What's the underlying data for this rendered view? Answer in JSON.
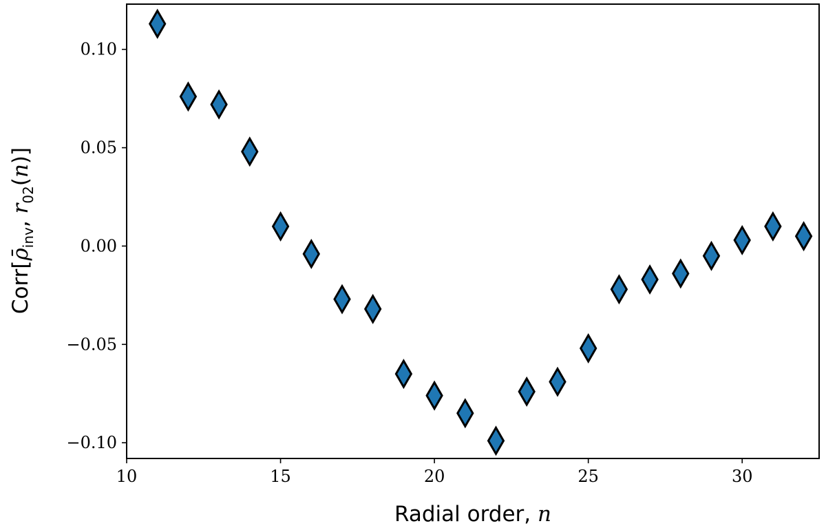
{
  "chart_data": {
    "type": "scatter",
    "xlabel": "Radial order, n",
    "xlabel_text": "Radial order, ",
    "xlabel_math": "n",
    "ylabel": "Corr[ρ̄inv, r02(n)]",
    "xlim": [
      10,
      32.5
    ],
    "ylim": [
      -0.108,
      0.123
    ],
    "xticks": [
      10,
      15,
      20,
      25,
      30
    ],
    "xtick_labels": [
      "10",
      "15",
      "20",
      "25",
      "30"
    ],
    "yticks": [
      0.1,
      0.05,
      0.0,
      -0.05,
      -0.1
    ],
    "ytick_labels": [
      "0.10",
      "0.05",
      "0.00",
      "−0.05",
      "−0.10"
    ],
    "grid": false,
    "marker": "diamond",
    "marker_color": "#1f77b4",
    "marker_edge_color": "#000000",
    "series": [
      {
        "x": [
          11,
          12,
          13,
          14,
          15,
          16,
          17,
          18,
          19,
          20,
          21,
          22,
          23,
          24,
          25,
          26,
          27,
          28,
          29,
          30,
          31,
          32
        ],
        "y": [
          0.113,
          0.076,
          0.072,
          0.048,
          0.01,
          -0.004,
          -0.027,
          -0.032,
          -0.065,
          -0.076,
          -0.085,
          -0.099,
          -0.074,
          -0.069,
          -0.052,
          -0.022,
          -0.017,
          -0.014,
          -0.005,
          0.003,
          0.01,
          0.005
        ]
      }
    ]
  }
}
